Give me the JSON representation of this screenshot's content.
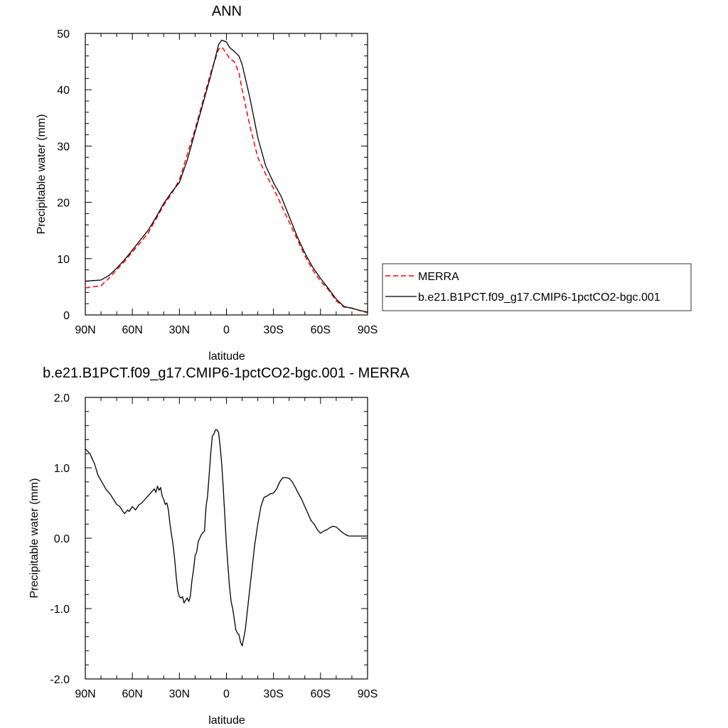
{
  "chart_data": [
    {
      "type": "line",
      "title": "ANN",
      "xlabel": "latitude",
      "ylabel": "Precipitable water (mm)",
      "xlim": [
        90,
        -90
      ],
      "ylim": [
        0,
        50
      ],
      "xticks": [
        90,
        60,
        30,
        0,
        -30,
        -60,
        -90
      ],
      "xtick_labels": [
        "90N",
        "60N",
        "30N",
        "0",
        "30S",
        "60S",
        "90S"
      ],
      "yticks": [
        0,
        10,
        20,
        30,
        40,
        50
      ],
      "ytick_labels": [
        "0",
        "10",
        "20",
        "30",
        "40",
        "50"
      ],
      "legend": {
        "placement": "right",
        "entries": [
          "MERRA",
          "b.e21.B1PCT.f09_g17.CMIP6-1pctCO2-bgc.001"
        ]
      },
      "series": [
        {
          "name": "MERRA",
          "color": "#ff0000",
          "style": "dashed",
          "x": [
            90,
            85,
            80,
            75,
            70,
            65,
            60,
            55,
            50,
            45,
            40,
            35,
            30,
            25,
            20,
            15,
            10,
            5,
            3,
            0,
            -2,
            -5,
            -8,
            -10,
            -15,
            -20,
            -25,
            -30,
            -35,
            -40,
            -45,
            -50,
            -55,
            -60,
            -65,
            -70,
            -75,
            -80,
            -85,
            -90
          ],
          "y": [
            4.8,
            5.0,
            5.2,
            6.5,
            8.0,
            9.5,
            11.2,
            12.8,
            14.5,
            17.0,
            19.5,
            21.5,
            24.0,
            28.5,
            33.0,
            38.0,
            43.0,
            47.2,
            47.6,
            46.5,
            45.5,
            45.0,
            43.0,
            40.0,
            33.5,
            28.0,
            25.0,
            22.5,
            19.5,
            16.5,
            13.5,
            10.5,
            8.0,
            6.0,
            4.5,
            2.5,
            1.4,
            1.2,
            0.8,
            0.4
          ]
        },
        {
          "name": "b.e21.B1PCT.f09_g17.CMIP6-1pctCO2-bgc.001",
          "color": "#000000",
          "style": "solid",
          "x": [
            90,
            85,
            80,
            75,
            70,
            65,
            60,
            55,
            50,
            45,
            40,
            35,
            30,
            25,
            20,
            15,
            10,
            5,
            3,
            0,
            -2,
            -5,
            -8,
            -10,
            -15,
            -20,
            -25,
            -30,
            -35,
            -40,
            -45,
            -50,
            -55,
            -60,
            -65,
            -70,
            -75,
            -80,
            -85,
            -90
          ],
          "y": [
            6.0,
            6.1,
            6.2,
            7.0,
            8.3,
            9.8,
            11.5,
            13.3,
            15.0,
            17.3,
            19.8,
            21.8,
            23.5,
            27.5,
            32.5,
            37.5,
            42.5,
            48.0,
            48.8,
            48.5,
            47.5,
            46.8,
            46.0,
            44.5,
            38.5,
            31.5,
            26.5,
            23.5,
            21.0,
            17.5,
            14.0,
            11.0,
            8.5,
            6.5,
            4.7,
            2.8,
            1.5,
            1.2,
            0.8,
            0.5
          ]
        }
      ]
    },
    {
      "type": "line",
      "title": "b.e21.B1PCT.f09_g17.CMIP6-1pctCO2-bgc.001 - MERRA",
      "xlabel": "latitude",
      "ylabel": "Precipitable water (mm)",
      "xlim": [
        90,
        -90
      ],
      "ylim": [
        -2,
        2
      ],
      "xticks": [
        90,
        60,
        30,
        0,
        -30,
        -60,
        -90
      ],
      "xtick_labels": [
        "90N",
        "60N",
        "30N",
        "0",
        "30S",
        "60S",
        "90S"
      ],
      "yticks": [
        -2,
        -1,
        0,
        1,
        2
      ],
      "ytick_labels": [
        "-2.0",
        "-1.0",
        "0.0",
        "1.0",
        "2.0"
      ],
      "series": [
        {
          "color": "#000000",
          "style": "solid",
          "x": [
            90,
            87,
            84,
            82,
            80,
            77,
            74,
            72,
            70,
            68,
            66,
            65,
            63,
            62,
            60,
            58,
            56,
            54,
            52,
            50,
            48,
            46,
            45,
            44,
            43,
            42,
            41,
            40,
            39,
            38,
            37,
            36,
            35,
            34,
            33,
            32,
            31,
            30,
            29,
            28,
            27,
            26,
            25,
            24,
            23,
            22,
            21,
            20,
            19,
            18,
            17,
            16,
            15,
            14,
            13,
            12,
            11,
            10,
            9,
            8,
            7,
            6,
            5,
            4,
            3,
            2,
            1,
            0,
            -1,
            -2,
            -3,
            -4,
            -5,
            -6,
            -7,
            -8,
            -9,
            -10,
            -11,
            -12,
            -13,
            -14,
            -15,
            -16,
            -17,
            -18,
            -20,
            -22,
            -24,
            -26,
            -28,
            -30,
            -32,
            -34,
            -36,
            -38,
            -40,
            -42,
            -44,
            -46,
            -48,
            -50,
            -52,
            -54,
            -56,
            -58,
            -60,
            -62,
            -64,
            -66,
            -68,
            -70,
            -72,
            -74,
            -76,
            -78,
            -80,
            -82,
            -84,
            -86,
            -88,
            -90
          ],
          "y": [
            1.27,
            1.2,
            1.05,
            0.9,
            0.82,
            0.7,
            0.62,
            0.55,
            0.48,
            0.45,
            0.38,
            0.35,
            0.4,
            0.38,
            0.45,
            0.4,
            0.47,
            0.5,
            0.55,
            0.6,
            0.65,
            0.7,
            0.65,
            0.74,
            0.68,
            0.72,
            0.6,
            0.55,
            0.48,
            0.5,
            0.4,
            0.2,
            0.05,
            -0.1,
            -0.3,
            -0.55,
            -0.75,
            -0.83,
            -0.85,
            -0.83,
            -0.92,
            -0.88,
            -0.85,
            -0.9,
            -0.82,
            -0.6,
            -0.45,
            -0.25,
            -0.2,
            -0.05,
            0.0,
            0.05,
            0.08,
            0.1,
            0.45,
            0.6,
            0.9,
            1.2,
            1.45,
            1.48,
            1.54,
            1.54,
            1.5,
            1.3,
            1.05,
            0.7,
            0.3,
            -0.1,
            -0.4,
            -0.7,
            -0.9,
            -1.0,
            -1.15,
            -1.3,
            -1.35,
            -1.37,
            -1.48,
            -1.53,
            -1.42,
            -1.3,
            -1.1,
            -0.9,
            -0.7,
            -0.5,
            -0.3,
            -0.1,
            0.2,
            0.45,
            0.58,
            0.6,
            0.63,
            0.64,
            0.7,
            0.8,
            0.86,
            0.86,
            0.85,
            0.8,
            0.72,
            0.63,
            0.55,
            0.45,
            0.35,
            0.25,
            0.2,
            0.12,
            0.07,
            0.1,
            0.12,
            0.15,
            0.17,
            0.16,
            0.12,
            0.08,
            0.05,
            0.03,
            0.03,
            0.03,
            0.03,
            0.03,
            0.03,
            0.03
          ]
        }
      ]
    }
  ]
}
